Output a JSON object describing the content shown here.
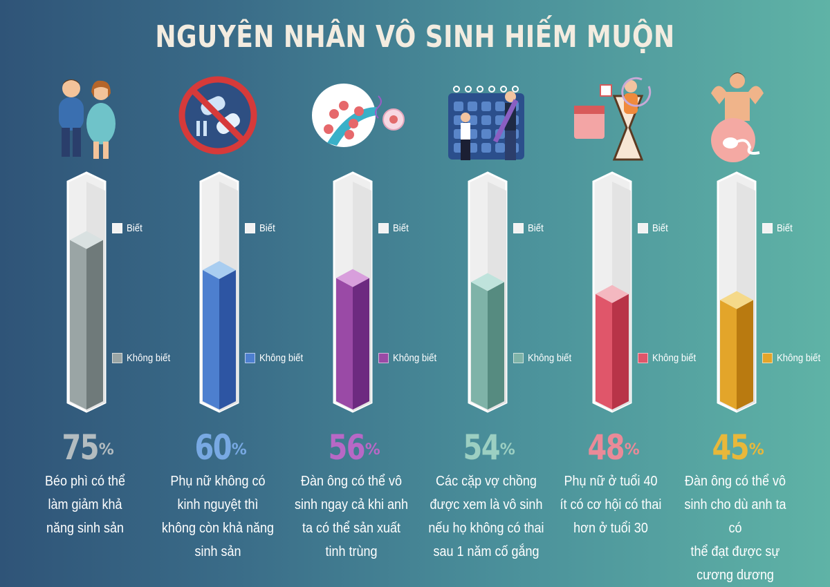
{
  "title": "NGUYÊN NHÂN VÔ SINH HIẾM MUỘN",
  "legend": {
    "know": "Biết",
    "dont_know": "Không biết"
  },
  "chart_data": {
    "type": "bar",
    "title": "NGUYÊN NHÂN VÔ SINH HIẾM MUỘN",
    "categories": [
      "Béo phì có thể làm giảm khả năng sinh sản",
      "Phụ nữ không có kinh nguyệt thì không còn khả năng sinh sản",
      "Đàn ông có thể vô sinh ngay cả khi anh ta có thể sản xuất tinh trùng",
      "Các cặp vợ chồng được xem là vô sinh nếu họ không có thai sau 1 năm cố gắng",
      "Phụ nữ ở tuổi 40 ít có cơ hội có thai hơn ở tuổi 30",
      "Đàn ông có thể vô sinh cho dù anh ta có thể đạt được sự cương dương"
    ],
    "series": [
      {
        "name": "Không biết",
        "values": [
          75,
          60,
          56,
          54,
          48,
          45
        ]
      }
    ],
    "ylim": [
      0,
      100
    ],
    "legend_position": "beside each bar"
  },
  "columns": [
    {
      "percent": "75",
      "sign": "%",
      "lines": [
        "Béo phì có thể",
        "làm giảm khả",
        "năng sinh sản"
      ],
      "colors": {
        "front": "#9aa5a5",
        "side": "#6f7a7a",
        "top": "#d9e1e1",
        "text": "#b3bcc0"
      }
    },
    {
      "percent": "60",
      "sign": "%",
      "lines": [
        "Phụ nữ không có",
        "kinh nguyệt thì",
        "không còn khả năng",
        "sinh sản"
      ],
      "colors": {
        "front": "#4d7fcf",
        "side": "#2d55a3",
        "top": "#a9cdf0",
        "text": "#78a9e3"
      }
    },
    {
      "percent": "56",
      "sign": "%",
      "lines": [
        "Đàn ông có thể vô",
        "sinh ngay cả khi anh",
        "ta có thể sản xuất",
        "tinh trùng"
      ],
      "colors": {
        "front": "#9a4aa6",
        "side": "#6d2a80",
        "top": "#d89fdc",
        "text": "#b868c6"
      }
    },
    {
      "percent": "54",
      "sign": "%",
      "lines": [
        "Các cặp vợ chồng",
        "được xem là vô sinh",
        "nếu họ không có thai",
        "sau 1 năm cố gắng"
      ],
      "colors": {
        "front": "#7fb3a8",
        "side": "#568b80",
        "top": "#bfe3dc",
        "text": "#9ccfc2"
      }
    },
    {
      "percent": "48",
      "sign": "%",
      "lines": [
        "Phụ nữ ở tuổi 40",
        "ít có cơ hội có thai",
        "hơn ở tuổi 30"
      ],
      "colors": {
        "front": "#e0566a",
        "side": "#b83448",
        "top": "#f4b8c0",
        "text": "#ea8a98"
      }
    },
    {
      "percent": "45",
      "sign": "%",
      "lines": [
        "Đàn ông có thể vô",
        "sinh cho dù anh ta có",
        "thể đạt được sự",
        "cương dương"
      ],
      "colors": {
        "front": "#e3a52a",
        "side": "#b97a10",
        "top": "#f5d98a",
        "text": "#e8b83a"
      }
    }
  ],
  "icons": [
    "obese-couple-icon",
    "no-menstrual-pads-icon",
    "sperm-egg-cells-icon",
    "couple-calendar-icon",
    "woman-age-hourglass-icon",
    "muscular-man-sleeping-sperm-icon"
  ]
}
